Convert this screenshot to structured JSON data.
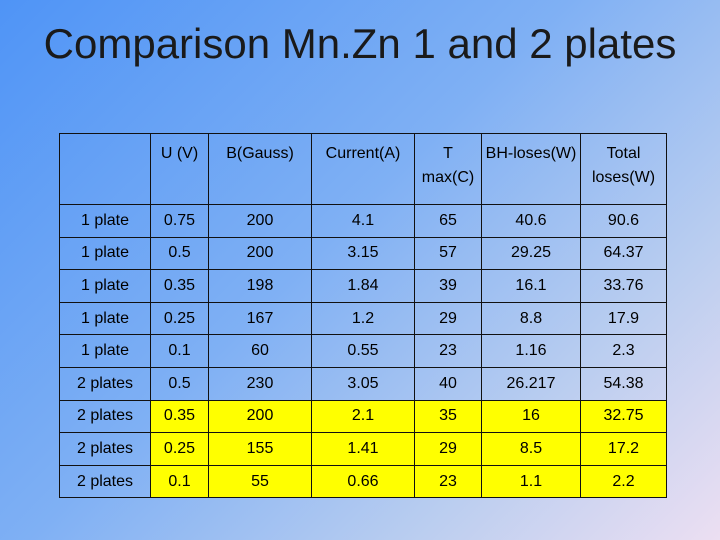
{
  "title": "Comparison Mn.Zn 1 and 2 plates",
  "table": {
    "headers": [
      "",
      "U (V)",
      "B(Gauss)",
      "Current(A)",
      "T max(C)",
      "BH-loses(W)",
      "Total loses(W)"
    ],
    "rows": [
      {
        "label": "1 plate",
        "cells": [
          "0.75",
          "200",
          "4.1",
          "65",
          "40.6",
          "90.6"
        ],
        "highlight": false
      },
      {
        "label": "1 plate",
        "cells": [
          "0.5",
          "200",
          "3.15",
          "57",
          "29.25",
          "64.37"
        ],
        "highlight": false
      },
      {
        "label": "1 plate",
        "cells": [
          "0.35",
          "198",
          "1.84",
          "39",
          "16.1",
          "33.76"
        ],
        "highlight": false
      },
      {
        "label": "1 plate",
        "cells": [
          "0.25",
          "167",
          "1.2",
          "29",
          "8.8",
          "17.9"
        ],
        "highlight": false
      },
      {
        "label": "1 plate",
        "cells": [
          "0.1",
          "60",
          "0.55",
          "23",
          "1.16",
          "2.3"
        ],
        "highlight": false
      },
      {
        "label": "2 plates",
        "cells": [
          "0.5",
          "230",
          "3.05",
          "40",
          "26.217",
          "54.38"
        ],
        "highlight": false
      },
      {
        "label": "2 plates",
        "cells": [
          "0.35",
          "200",
          "2.1",
          "35",
          "16",
          "32.75"
        ],
        "highlight": true
      },
      {
        "label": "2 plates",
        "cells": [
          "0.25",
          "155",
          "1.41",
          "29",
          "8.5",
          "17.2"
        ],
        "highlight": true
      },
      {
        "label": "2 plates",
        "cells": [
          "0.1",
          "55",
          "0.66",
          "23",
          "1.1",
          "2.2"
        ],
        "highlight": true
      }
    ]
  },
  "colors": {
    "highlight": "#ffff00",
    "background_start": "#4f94f6",
    "background_end": "#ecdff2"
  }
}
